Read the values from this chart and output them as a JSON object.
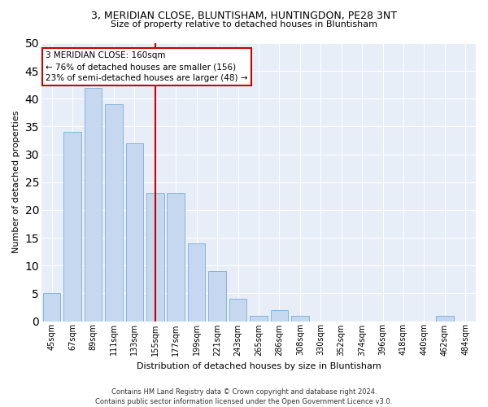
{
  "title": "3, MERIDIAN CLOSE, BLUNTISHAM, HUNTINGDON, PE28 3NT",
  "subtitle": "Size of property relative to detached houses in Bluntisham",
  "xlabel": "Distribution of detached houses by size in Bluntisham",
  "ylabel": "Number of detached properties",
  "categories": [
    "45sqm",
    "67sqm",
    "89sqm",
    "111sqm",
    "133sqm",
    "155sqm",
    "177sqm",
    "199sqm",
    "221sqm",
    "243sqm",
    "265sqm",
    "286sqm",
    "308sqm",
    "330sqm",
    "352sqm",
    "374sqm",
    "396sqm",
    "418sqm",
    "440sqm",
    "462sqm",
    "484sqm"
  ],
  "values": [
    5,
    34,
    42,
    39,
    32,
    23,
    23,
    14,
    9,
    4,
    1,
    2,
    1,
    0,
    0,
    0,
    0,
    0,
    0,
    1,
    0
  ],
  "bar_color": "#c5d8ef",
  "bar_edge_color": "#7aadd4",
  "vline_index": 5,
  "ylim": [
    0,
    50
  ],
  "yticks": [
    0,
    5,
    10,
    15,
    20,
    25,
    30,
    35,
    40,
    45,
    50
  ],
  "annotation_lines": [
    "3 MERIDIAN CLOSE: 160sqm",
    "← 76% of detached houses are smaller (156)",
    "23% of semi-detached houses are larger (48) →"
  ],
  "footer_line1": "Contains HM Land Registry data © Crown copyright and database right 2024.",
  "footer_line2": "Contains public sector information licensed under the Open Government Licence v3.0.",
  "bg_color": "#e8eef8",
  "vline_color": "#cc0000",
  "box_color": "#cc0000",
  "title_fontsize": 9,
  "subtitle_fontsize": 8,
  "ylabel_fontsize": 8,
  "xlabel_fontsize": 8,
  "tick_fontsize": 7,
  "footer_fontsize": 6,
  "ann_fontsize": 7.5
}
